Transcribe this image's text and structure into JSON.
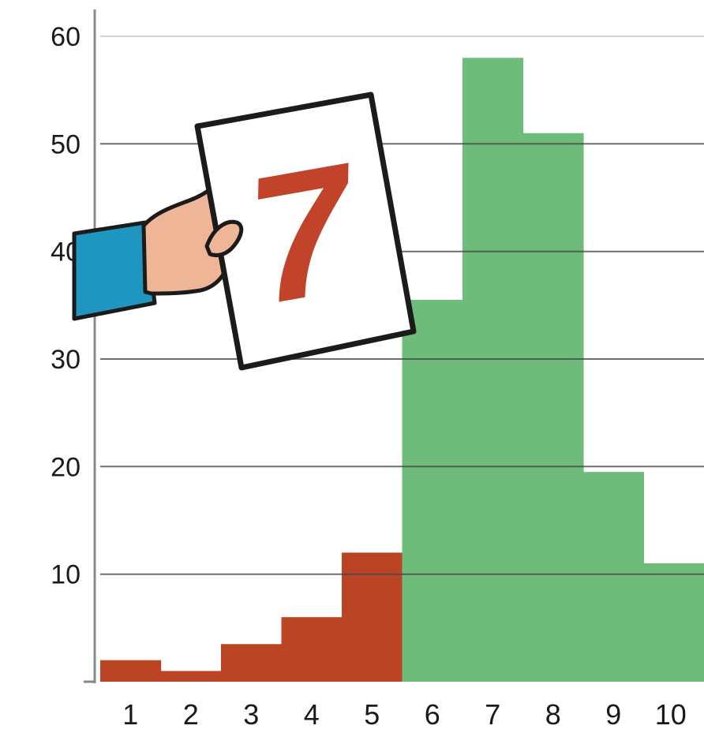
{
  "chart_data": {
    "type": "bar",
    "categories": [
      "1",
      "2",
      "3",
      "4",
      "5",
      "6",
      "7",
      "8",
      "9",
      "10"
    ],
    "values": [
      2,
      1,
      3.5,
      6,
      12,
      35.5,
      58,
      51,
      19.5,
      11
    ],
    "bar_colors": [
      "#bb4424",
      "#bb4424",
      "#bb4424",
      "#bb4424",
      "#bb4424",
      "#6fbb7c",
      "#6fbb7c",
      "#6fbb7c",
      "#6fbb7c",
      "#6fbb7c"
    ],
    "yticks": [
      "10",
      "20",
      "30",
      "40",
      "50",
      "60"
    ],
    "ylim": [
      0,
      60
    ],
    "grid": true,
    "title": "",
    "xlabel": "",
    "ylabel": ""
  },
  "illustration": {
    "card_number": "7",
    "card_color": "#c0432a",
    "sleeve_color": "#1f96c0",
    "skin_color": "#eeb596"
  }
}
